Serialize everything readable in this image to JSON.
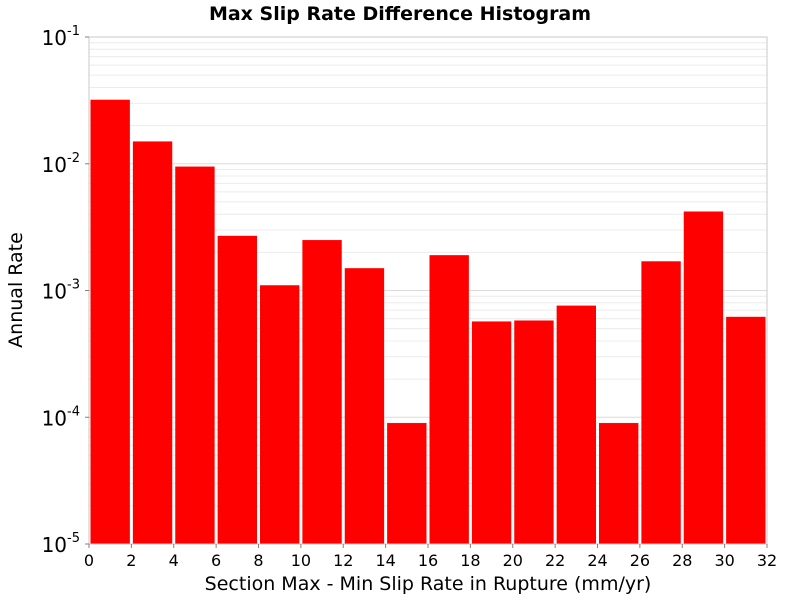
{
  "chart_data": {
    "type": "bar",
    "title": "Max Slip Rate Difference Histogram",
    "xlabel": "Section Max - Min Slip Rate in Rupture (mm/yr)",
    "ylabel": "Annual Rate",
    "xlim": [
      0,
      32
    ],
    "ylim": [
      1e-05,
      0.1
    ],
    "y_scale": "log",
    "grid": true,
    "bar_color": "#ff0000",
    "x_ticks": [
      "0",
      "2",
      "4",
      "6",
      "8",
      "10",
      "12",
      "14",
      "16",
      "18",
      "20",
      "22",
      "24",
      "26",
      "28",
      "30",
      "32"
    ],
    "y_ticks": [
      {
        "base": "10",
        "exp": "-5",
        "value": 1e-05
      },
      {
        "base": "10",
        "exp": "-4",
        "value": 0.0001
      },
      {
        "base": "10",
        "exp": "-3",
        "value": 0.001
      },
      {
        "base": "10",
        "exp": "-2",
        "value": 0.01
      },
      {
        "base": "10",
        "exp": "-1",
        "value": 0.1
      }
    ],
    "bins": [
      {
        "x_start": 0,
        "x_end": 2,
        "value": 0.032
      },
      {
        "x_start": 2,
        "x_end": 4,
        "value": 0.015
      },
      {
        "x_start": 4,
        "x_end": 6,
        "value": 0.0095
      },
      {
        "x_start": 6,
        "x_end": 8,
        "value": 0.0027
      },
      {
        "x_start": 8,
        "x_end": 10,
        "value": 0.0011
      },
      {
        "x_start": 10,
        "x_end": 12,
        "value": 0.0025
      },
      {
        "x_start": 12,
        "x_end": 14,
        "value": 0.0015
      },
      {
        "x_start": 14,
        "x_end": 16,
        "value": 9e-05
      },
      {
        "x_start": 16,
        "x_end": 18,
        "value": 0.0019
      },
      {
        "x_start": 18,
        "x_end": 20,
        "value": 0.00057
      },
      {
        "x_start": 20,
        "x_end": 22,
        "value": 0.00058
      },
      {
        "x_start": 22,
        "x_end": 24,
        "value": 0.00076
      },
      {
        "x_start": 24,
        "x_end": 26,
        "value": 9e-05
      },
      {
        "x_start": 26,
        "x_end": 28,
        "value": 0.0017
      },
      {
        "x_start": 28,
        "x_end": 30,
        "value": 0.0042
      },
      {
        "x_start": 30,
        "x_end": 32,
        "value": 0.00062
      }
    ]
  }
}
